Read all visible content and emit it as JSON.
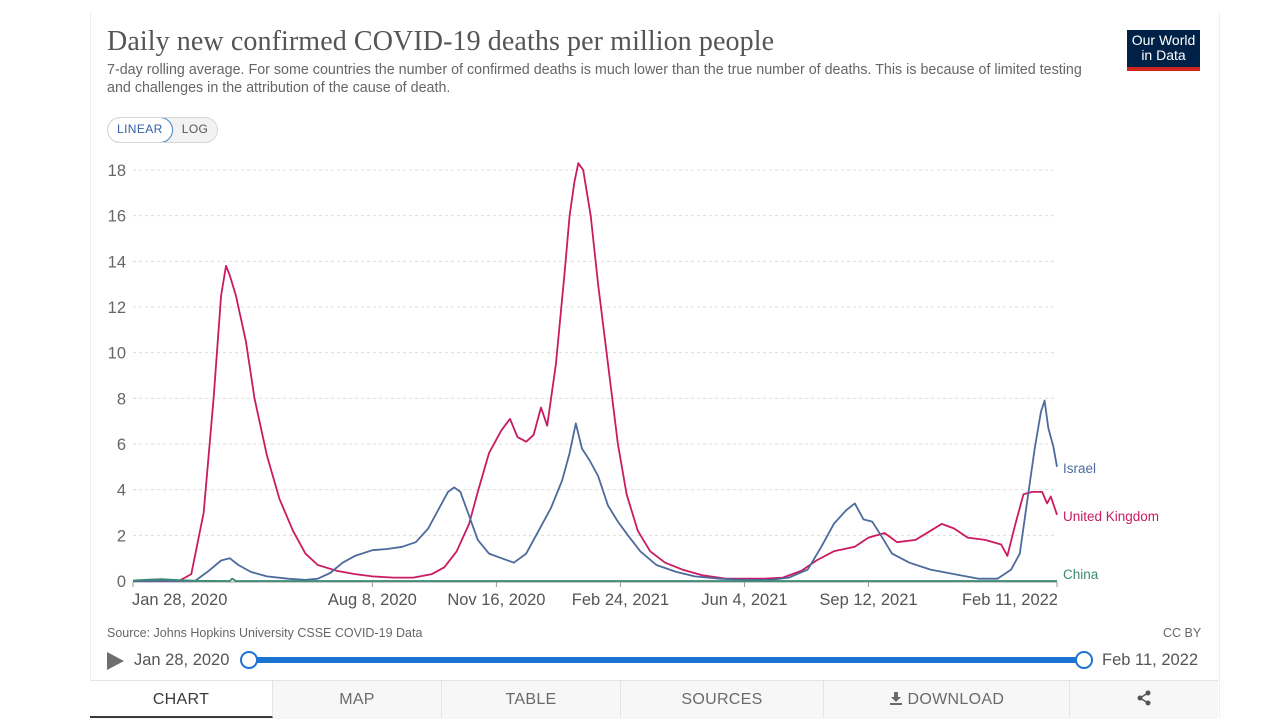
{
  "header": {
    "title": "Daily new confirmed COVID-19 deaths per million people",
    "subtitle": "7-day rolling average. For some countries the number of confirmed deaths is much lower than the true number of deaths. This is because of limited testing and challenges in the attribution of the cause of death.",
    "logo_line1": "Our World",
    "logo_line2": "in Data"
  },
  "scale_toggle": {
    "linear": "LINEAR",
    "log": "LOG",
    "selected": "LINEAR"
  },
  "colors": {
    "Israel": "#4c6a9c",
    "United Kingdom": "#ca1a62",
    "China": "#3a8b74",
    "grid": "#dcdcdc",
    "axis": "#666666",
    "accent": "#1b74d2"
  },
  "chart_data": {
    "type": "line",
    "title": "Daily new confirmed COVID-19 deaths per million people",
    "xlabel": "",
    "ylabel": "",
    "x_ticks": [
      "Jan 28, 2020",
      "Aug 8, 2020",
      "Nov 16, 2020",
      "Feb 24, 2021",
      "Jun 4, 2021",
      "Sep 12, 2021",
      "Feb 11, 2022"
    ],
    "y_ticks": [
      "0",
      "2",
      "4",
      "6",
      "8",
      "10",
      "12",
      "14",
      "16",
      "18"
    ],
    "xlim": [
      "2020-01-28",
      "2022-02-11"
    ],
    "ylim": [
      0,
      18
    ],
    "grid": "horizontal dashed",
    "legend": "inline labels at line ends",
    "series": [
      {
        "name": "United Kingdom",
        "points": [
          [
            "2020-01-28",
            0
          ],
          [
            "2020-03-05",
            0
          ],
          [
            "2020-03-15",
            0.3
          ],
          [
            "2020-03-25",
            3
          ],
          [
            "2020-04-02",
            8
          ],
          [
            "2020-04-08",
            12.5
          ],
          [
            "2020-04-12",
            13.8
          ],
          [
            "2020-04-15",
            13.4
          ],
          [
            "2020-04-20",
            12.5
          ],
          [
            "2020-04-28",
            10.5
          ],
          [
            "2020-05-05",
            8
          ],
          [
            "2020-05-15",
            5.5
          ],
          [
            "2020-05-25",
            3.6
          ],
          [
            "2020-06-05",
            2.2
          ],
          [
            "2020-06-15",
            1.2
          ],
          [
            "2020-06-25",
            0.7
          ],
          [
            "2020-07-10",
            0.45
          ],
          [
            "2020-07-25",
            0.3
          ],
          [
            "2020-08-08",
            0.2
          ],
          [
            "2020-08-25",
            0.15
          ],
          [
            "2020-09-10",
            0.15
          ],
          [
            "2020-09-25",
            0.3
          ],
          [
            "2020-10-05",
            0.6
          ],
          [
            "2020-10-15",
            1.3
          ],
          [
            "2020-10-25",
            2.5
          ],
          [
            "2020-11-01",
            3.9
          ],
          [
            "2020-11-10",
            5.6
          ],
          [
            "2020-11-20",
            6.6
          ],
          [
            "2020-11-27",
            7.1
          ],
          [
            "2020-12-03",
            6.3
          ],
          [
            "2020-12-10",
            6.1
          ],
          [
            "2020-12-16",
            6.4
          ],
          [
            "2020-12-22",
            7.6
          ],
          [
            "2020-12-27",
            6.8
          ],
          [
            "2021-01-03",
            9.5
          ],
          [
            "2021-01-10",
            13.5
          ],
          [
            "2021-01-14",
            16
          ],
          [
            "2021-01-18",
            17.5
          ],
          [
            "2021-01-21",
            18.3
          ],
          [
            "2021-01-25",
            18
          ],
          [
            "2021-01-31",
            16
          ],
          [
            "2021-02-06",
            13
          ],
          [
            "2021-02-14",
            9.5
          ],
          [
            "2021-02-22",
            6
          ],
          [
            "2021-03-01",
            3.8
          ],
          [
            "2021-03-10",
            2.2
          ],
          [
            "2021-03-20",
            1.3
          ],
          [
            "2021-04-01",
            0.8
          ],
          [
            "2021-04-15",
            0.5
          ],
          [
            "2021-05-01",
            0.25
          ],
          [
            "2021-05-20",
            0.1
          ],
          [
            "2021-06-04",
            0.1
          ],
          [
            "2021-06-20",
            0.1
          ],
          [
            "2021-07-05",
            0.15
          ],
          [
            "2021-07-20",
            0.45
          ],
          [
            "2021-08-01",
            0.9
          ],
          [
            "2021-08-15",
            1.3
          ],
          [
            "2021-09-01",
            1.5
          ],
          [
            "2021-09-12",
            1.9
          ],
          [
            "2021-09-25",
            2.1
          ],
          [
            "2021-10-05",
            1.7
          ],
          [
            "2021-10-20",
            1.8
          ],
          [
            "2021-11-01",
            2.2
          ],
          [
            "2021-11-10",
            2.5
          ],
          [
            "2021-11-20",
            2.3
          ],
          [
            "2021-12-01",
            1.9
          ],
          [
            "2021-12-15",
            1.8
          ],
          [
            "2021-12-28",
            1.6
          ],
          [
            "2022-01-02",
            1.1
          ],
          [
            "2022-01-08",
            2.4
          ],
          [
            "2022-01-15",
            3.8
          ],
          [
            "2022-01-22",
            3.9
          ],
          [
            "2022-01-30",
            3.9
          ],
          [
            "2022-02-03",
            3.4
          ],
          [
            "2022-02-06",
            3.7
          ],
          [
            "2022-02-11",
            2.9
          ]
        ]
      },
      {
        "name": "Israel",
        "points": [
          [
            "2020-01-28",
            0
          ],
          [
            "2020-03-18",
            0
          ],
          [
            "2020-03-28",
            0.4
          ],
          [
            "2020-04-08",
            0.9
          ],
          [
            "2020-04-15",
            1.0
          ],
          [
            "2020-04-22",
            0.7
          ],
          [
            "2020-05-02",
            0.4
          ],
          [
            "2020-05-15",
            0.2
          ],
          [
            "2020-06-01",
            0.1
          ],
          [
            "2020-06-15",
            0.05
          ],
          [
            "2020-06-25",
            0.1
          ],
          [
            "2020-07-05",
            0.35
          ],
          [
            "2020-07-15",
            0.8
          ],
          [
            "2020-07-25",
            1.1
          ],
          [
            "2020-08-08",
            1.35
          ],
          [
            "2020-08-20",
            1.4
          ],
          [
            "2020-09-01",
            1.5
          ],
          [
            "2020-09-12",
            1.7
          ],
          [
            "2020-09-22",
            2.3
          ],
          [
            "2020-10-01",
            3.2
          ],
          [
            "2020-10-08",
            3.9
          ],
          [
            "2020-10-13",
            4.1
          ],
          [
            "2020-10-18",
            3.9
          ],
          [
            "2020-10-24",
            3.0
          ],
          [
            "2020-11-01",
            1.8
          ],
          [
            "2020-11-10",
            1.2
          ],
          [
            "2020-11-20",
            1.0
          ],
          [
            "2020-11-30",
            0.8
          ],
          [
            "2020-12-10",
            1.2
          ],
          [
            "2020-12-20",
            2.2
          ],
          [
            "2020-12-30",
            3.2
          ],
          [
            "2021-01-08",
            4.4
          ],
          [
            "2021-01-14",
            5.6
          ],
          [
            "2021-01-19",
            6.9
          ],
          [
            "2021-01-24",
            5.8
          ],
          [
            "2021-01-30",
            5.3
          ],
          [
            "2021-02-06",
            4.6
          ],
          [
            "2021-02-14",
            3.3
          ],
          [
            "2021-02-22",
            2.6
          ],
          [
            "2021-03-02",
            2.0
          ],
          [
            "2021-03-12",
            1.3
          ],
          [
            "2021-03-25",
            0.7
          ],
          [
            "2021-04-10",
            0.4
          ],
          [
            "2021-04-25",
            0.2
          ],
          [
            "2021-05-15",
            0.1
          ],
          [
            "2021-06-04",
            0.05
          ],
          [
            "2021-06-25",
            0.05
          ],
          [
            "2021-07-10",
            0.15
          ],
          [
            "2021-07-25",
            0.5
          ],
          [
            "2021-08-05",
            1.5
          ],
          [
            "2021-08-15",
            2.5
          ],
          [
            "2021-08-25",
            3.1
          ],
          [
            "2021-09-01",
            3.4
          ],
          [
            "2021-09-08",
            2.7
          ],
          [
            "2021-09-15",
            2.6
          ],
          [
            "2021-09-22",
            2.0
          ],
          [
            "2021-10-01",
            1.2
          ],
          [
            "2021-10-15",
            0.8
          ],
          [
            "2021-11-01",
            0.5
          ],
          [
            "2021-11-20",
            0.3
          ],
          [
            "2021-12-10",
            0.1
          ],
          [
            "2021-12-25",
            0.1
          ],
          [
            "2022-01-05",
            0.5
          ],
          [
            "2022-01-12",
            1.2
          ],
          [
            "2022-01-18",
            3.5
          ],
          [
            "2022-01-24",
            5.8
          ],
          [
            "2022-01-29",
            7.4
          ],
          [
            "2022-02-01",
            7.9
          ],
          [
            "2022-02-04",
            6.7
          ],
          [
            "2022-02-08",
            5.9
          ],
          [
            "2022-02-11",
            5.0
          ]
        ]
      },
      {
        "name": "China",
        "points": [
          [
            "2020-01-28",
            0.02
          ],
          [
            "2020-02-10",
            0.06
          ],
          [
            "2020-02-20",
            0.08
          ],
          [
            "2020-03-05",
            0.04
          ],
          [
            "2020-03-20",
            0.01
          ],
          [
            "2020-04-15",
            0.0
          ],
          [
            "2020-04-17",
            0.1
          ],
          [
            "2020-04-20",
            0.0
          ],
          [
            "2022-02-11",
            0.0
          ]
        ]
      }
    ]
  },
  "source": "Source: Johns Hopkins University CSSE COVID-19 Data",
  "license": "CC BY",
  "timeline": {
    "start": "Jan 28, 2020",
    "end": "Feb 11, 2022"
  },
  "tabs": [
    "CHART",
    "MAP",
    "TABLE",
    "SOURCES",
    "DOWNLOAD"
  ],
  "share_icon": "share-icon",
  "download_icon": "download-icon"
}
